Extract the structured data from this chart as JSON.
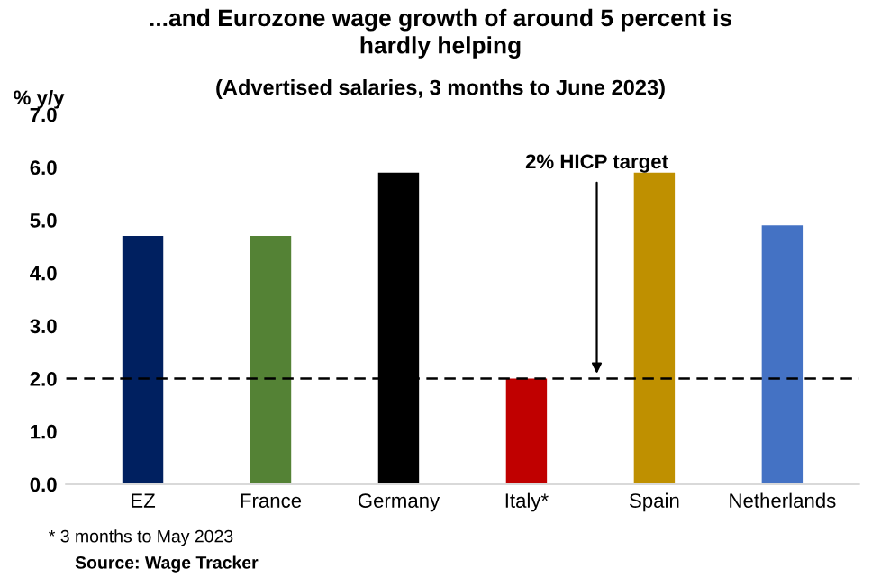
{
  "chart_data": {
    "type": "bar",
    "title": "...and Eurozone wage growth of around 5 percent is\nhardly helping",
    "subtitle": "(Advertised salaries, 3 months to June 2023)",
    "ylabel": "% y/y",
    "categories": [
      "EZ",
      "France",
      "Germany",
      "Italy*",
      "Spain",
      "Netherlands"
    ],
    "values": [
      4.7,
      4.7,
      5.9,
      2.0,
      5.9,
      4.9
    ],
    "colors": [
      "#002060",
      "#548235",
      "#000000",
      "#c00000",
      "#bf9000",
      "#4472c4"
    ],
    "ylim": [
      0,
      7
    ],
    "yticks": [
      {
        "value": 0,
        "label": "0.0"
      },
      {
        "value": 1,
        "label": "1.0"
      },
      {
        "value": 2,
        "label": "2.0"
      },
      {
        "value": 3,
        "label": "3.0"
      },
      {
        "value": 4,
        "label": "4.0"
      },
      {
        "value": 5,
        "label": "5.0"
      },
      {
        "value": 6,
        "label": "6.0"
      },
      {
        "value": 7,
        "label": "7.0"
      }
    ],
    "ref_lines": [
      {
        "axis": "y",
        "value": 2,
        "label": "2% HICP target",
        "color": "#000000",
        "line_style": "dashed"
      }
    ],
    "annotations": [
      "* 3 months to May 2023",
      "Source: Wage Tracker"
    ],
    "grid": false,
    "legend": false
  }
}
